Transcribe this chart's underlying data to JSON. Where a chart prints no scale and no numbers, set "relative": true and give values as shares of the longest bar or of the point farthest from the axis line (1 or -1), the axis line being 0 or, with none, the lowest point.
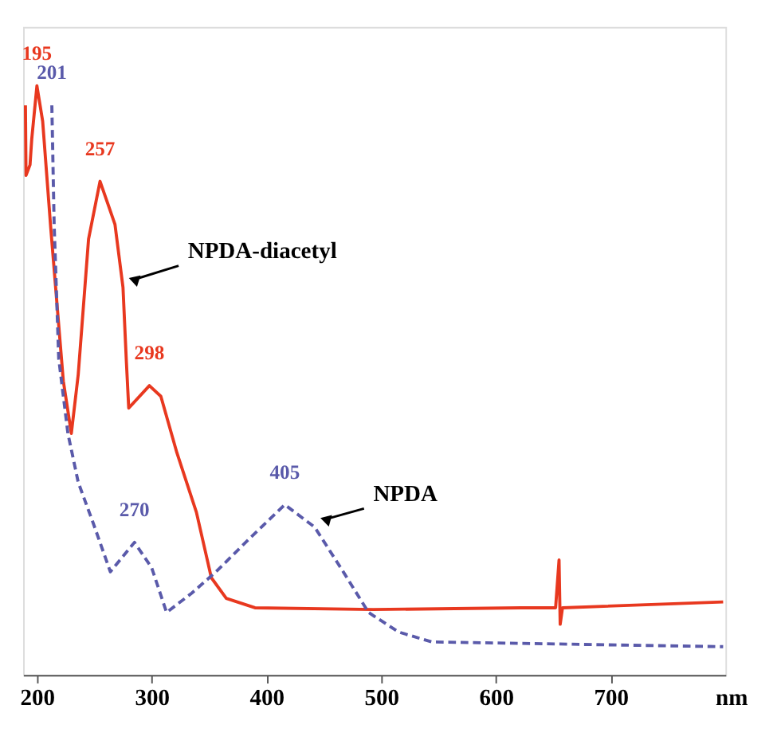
{
  "chart_data": {
    "type": "line",
    "relative": true,
    "xlabel": "nm",
    "xlim": [
      188,
      800
    ],
    "xticks": [
      200,
      300,
      400,
      500,
      600,
      700
    ],
    "marker": "none",
    "series": [
      {
        "name": "NPDA-diacetyl",
        "color": "#e8381f",
        "line_style": "solid",
        "x": [
          190,
          190.5,
          194,
          195.5,
          200,
          205,
          212,
          223,
          230,
          236,
          245,
          255,
          268,
          275,
          278,
          280,
          298,
          308,
          322,
          339,
          352,
          365,
          390,
          493,
          622,
          652,
          655,
          656,
          658,
          798
        ],
        "values": [
          0.967,
          0.848,
          0.866,
          0.91,
          1.0,
          0.94,
          0.76,
          0.499,
          0.41,
          0.51,
          0.74,
          0.838,
          0.765,
          0.658,
          0.53,
          0.453,
          0.491,
          0.473,
          0.377,
          0.276,
          0.165,
          0.13,
          0.114,
          0.111,
          0.114,
          0.114,
          0.195,
          0.086,
          0.114,
          0.124
        ]
      },
      {
        "name": "NPDA",
        "color": "#5a5aaa",
        "line_style": "dashed",
        "x": [
          213,
          215,
          219,
          227,
          236,
          249,
          264,
          285,
          300,
          313,
          335,
          356,
          386,
          416,
          442,
          467,
          489,
          515,
          544,
          798
        ],
        "values": [
          0.967,
          0.765,
          0.537,
          0.41,
          0.327,
          0.258,
          0.175,
          0.225,
          0.182,
          0.106,
          0.139,
          0.175,
          0.233,
          0.289,
          0.251,
          0.175,
          0.106,
          0.073,
          0.056,
          0.048
        ]
      }
    ],
    "annotations": [
      {
        "text": "195",
        "x": 200,
        "y": 1.0
      },
      {
        "text": "201",
        "x": 213,
        "y": 0.967
      },
      {
        "text": "257",
        "x": 255,
        "y": 0.838
      },
      {
        "text": "298",
        "x": 298,
        "y": 0.491
      },
      {
        "text": "270",
        "x": 285,
        "y": 0.225
      },
      {
        "text": "405",
        "x": 416,
        "y": 0.289
      }
    ]
  }
}
